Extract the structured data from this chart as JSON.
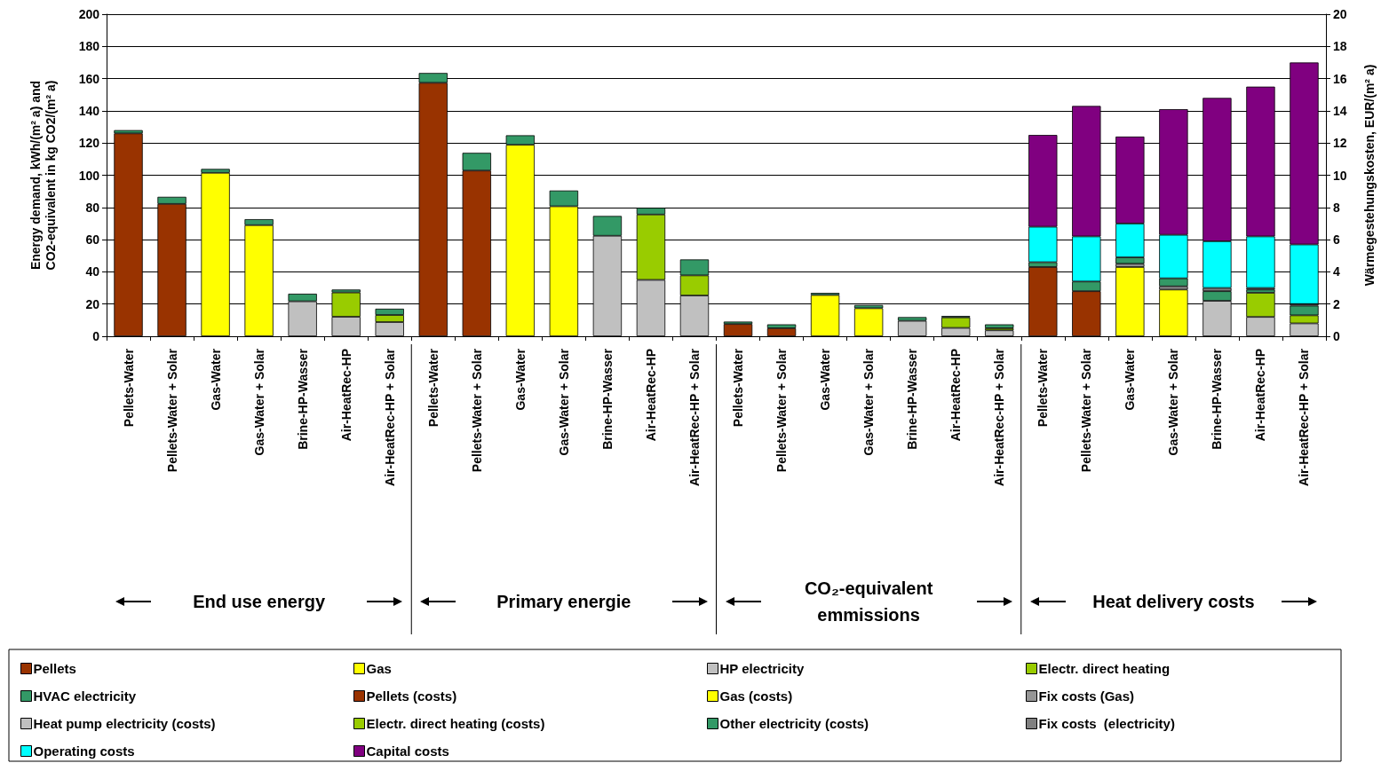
{
  "chart_data": {
    "type": "bar",
    "stacked": true,
    "categories": [
      "Pellets-Water",
      "Pellets-Water + Solar",
      "Gas-Water",
      "Gas-Water + Solar",
      "Brine-HP-Wasser",
      "Air-HeatRec-HP",
      "Air-HeatRec-HP + Solar",
      "Pellets-Water",
      "Pellets-Water + Solar",
      "Gas-Water",
      "Gas-Water + Solar",
      "Brine-HP-Wasser",
      "Air-HeatRec-HP",
      "Air-HeatRec-HP + Solar",
      "Pellets-Water",
      "Pellets-Water + Solar",
      "Gas-Water",
      "Gas-Water + Solar",
      "Brine-HP-Wasser",
      "Air-HeatRec-HP",
      "Air-HeatRec-HP + Solar",
      "Pellets-Water",
      "Pellets-Water + Solar",
      "Gas-Water",
      "Gas-Water + Solar",
      "Brine-HP-Wasser",
      "Air-HeatRec-HP",
      "Air-HeatRec-HP + Solar"
    ],
    "series": [
      {
        "name": "Pellets",
        "color": "#993300",
        "values": [
          126,
          82.2,
          null,
          null,
          null,
          null,
          null,
          157.4,
          102.9,
          null,
          null,
          null,
          null,
          null,
          7.6,
          5,
          null,
          null,
          null,
          null,
          null,
          null,
          null,
          null,
          null,
          null,
          null,
          null
        ]
      },
      {
        "name": "Gas",
        "color": "#ffff00",
        "values": [
          null,
          null,
          101.5,
          69,
          null,
          null,
          null,
          null,
          null,
          118.9,
          80.7,
          null,
          null,
          null,
          null,
          null,
          25.6,
          17.4,
          null,
          null,
          null,
          null,
          null,
          null,
          null,
          null,
          null,
          null
        ]
      },
      {
        "name": "HP electricity",
        "color": "#c0c0c0",
        "values": [
          null,
          null,
          null,
          null,
          21.7,
          12.1,
          8.8,
          null,
          null,
          null,
          null,
          62.4,
          35,
          25.3,
          null,
          null,
          null,
          null,
          9.6,
          5.2,
          3.7,
          null,
          null,
          null,
          null,
          null,
          null,
          null
        ]
      },
      {
        "name": "Electr. direct heating",
        "color": "#99cc00",
        "values": [
          null,
          null,
          null,
          null,
          null,
          15.1,
          4.4,
          null,
          null,
          null,
          null,
          null,
          40.6,
          12.5,
          null,
          null,
          null,
          null,
          null,
          6.5,
          1.3,
          null,
          null,
          null,
          null,
          null,
          null,
          null
        ]
      },
      {
        "name": "HVAC electricity",
        "color": "#339966",
        "values": [
          2,
          4.4,
          2.4,
          3.7,
          4.7,
          1.8,
          3.9,
          6.1,
          11,
          5.9,
          9.8,
          12.3,
          4.2,
          9.9,
          1.5,
          2.4,
          1.3,
          2,
          2.3,
          0.9,
          2.4,
          null,
          null,
          null,
          null,
          null,
          null,
          null
        ]
      },
      {
        "name": "Pellets (costs)",
        "color": "#993300",
        "axis": "y2",
        "values": [
          null,
          null,
          null,
          null,
          null,
          null,
          null,
          null,
          null,
          null,
          null,
          null,
          null,
          null,
          null,
          null,
          null,
          null,
          null,
          null,
          null,
          4.3,
          2.8,
          null,
          null,
          null,
          null,
          null
        ]
      },
      {
        "name": "Gas (costs)",
        "color": "#ffff00",
        "axis": "y2",
        "values": [
          null,
          null,
          null,
          null,
          null,
          null,
          null,
          null,
          null,
          null,
          null,
          null,
          null,
          null,
          null,
          null,
          null,
          null,
          null,
          null,
          null,
          null,
          null,
          4.3,
          2.9,
          null,
          null,
          null
        ]
      },
      {
        "name": "Fix costs (Gas)",
        "color": "#969696",
        "axis": "y2",
        "values": [
          null,
          null,
          null,
          null,
          null,
          null,
          null,
          null,
          null,
          null,
          null,
          null,
          null,
          null,
          null,
          null,
          null,
          null,
          null,
          null,
          null,
          null,
          null,
          0.2,
          0.2,
          null,
          null,
          null
        ]
      },
      {
        "name": "Heat pump electricity (costs)",
        "color": "#c0c0c0",
        "axis": "y2",
        "values": [
          null,
          null,
          null,
          null,
          null,
          null,
          null,
          null,
          null,
          null,
          null,
          null,
          null,
          null,
          null,
          null,
          null,
          null,
          null,
          null,
          null,
          null,
          null,
          null,
          null,
          2.2,
          1.2,
          0.8
        ]
      },
      {
        "name": "Electr. direct heating (costs)",
        "color": "#99cc00",
        "axis": "y2",
        "values": [
          null,
          null,
          null,
          null,
          null,
          null,
          null,
          null,
          null,
          null,
          null,
          null,
          null,
          null,
          null,
          null,
          null,
          null,
          null,
          null,
          null,
          null,
          null,
          null,
          null,
          null,
          1.5,
          0.5
        ]
      },
      {
        "name": "Other electricity (costs)",
        "color": "#339966",
        "axis": "y2",
        "values": [
          null,
          null,
          null,
          null,
          null,
          null,
          null,
          null,
          null,
          null,
          null,
          null,
          null,
          null,
          null,
          null,
          null,
          null,
          null,
          null,
          null,
          0.3,
          0.6,
          0.4,
          0.5,
          0.6,
          0.2,
          0.6
        ]
      },
      {
        "name": "Fix costs  (electricity)",
        "color": "#808080",
        "axis": "y2",
        "values": [
          null,
          null,
          null,
          null,
          null,
          null,
          null,
          null,
          null,
          null,
          null,
          null,
          null,
          null,
          null,
          null,
          null,
          null,
          null,
          null,
          null,
          null,
          null,
          null,
          null,
          0.2,
          0.1,
          0.1
        ]
      },
      {
        "name": "Operating costs",
        "color": "#00ffff",
        "axis": "y2",
        "values": [
          null,
          null,
          null,
          null,
          null,
          null,
          null,
          null,
          null,
          null,
          null,
          null,
          null,
          null,
          null,
          null,
          null,
          null,
          null,
          null,
          null,
          2.2,
          2.8,
          2.1,
          2.7,
          2.9,
          3.2,
          3.7
        ]
      },
      {
        "name": "Capital costs",
        "color": "#800080",
        "axis": "y2",
        "values": [
          null,
          null,
          null,
          null,
          null,
          null,
          null,
          null,
          null,
          null,
          null,
          null,
          null,
          null,
          null,
          null,
          null,
          null,
          null,
          null,
          null,
          5.7,
          8.1,
          5.4,
          7.8,
          8.9,
          9.3,
          11.3
        ]
      }
    ],
    "ylabel": "Energy demand, kWh/(m² a) and CO2-equivalent in kg CO2/(m² a)",
    "y2label": "Wärmegestehungskosten, EUR/(m² a)",
    "ylim": [
      0,
      200
    ],
    "yticks": [
      0,
      20,
      40,
      60,
      80,
      100,
      120,
      140,
      160,
      180,
      200
    ],
    "y2lim": [
      0,
      20
    ],
    "y2ticks": [
      0,
      2,
      4,
      6,
      8,
      10,
      12,
      14,
      16,
      18,
      20
    ],
    "annotations": [
      "End use energy",
      "Primary energie",
      "CO₂-equivalent emmissions",
      "Heat delivery costs"
    ],
    "grid": "y",
    "legend": "bottom"
  }
}
